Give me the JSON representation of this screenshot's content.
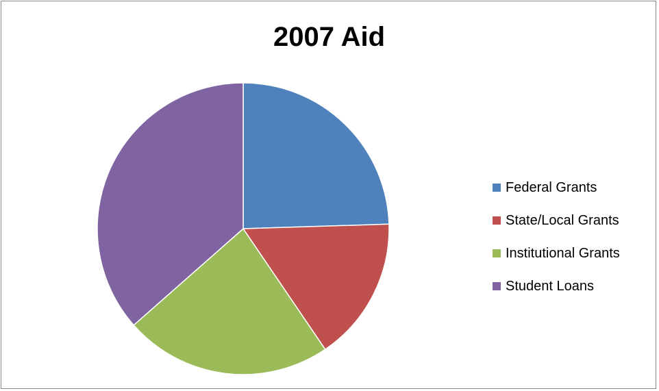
{
  "chart_data": {
    "type": "pie",
    "title": "2007 Aid",
    "categories": [
      "Federal Grants",
      "State/Local Grants",
      "Institutional Grants",
      "Student Loans"
    ],
    "values": [
      24.5,
      16.0,
      23.0,
      36.5
    ],
    "colors": [
      "#4F81BD",
      "#C0504D",
      "#9BBB59",
      "#8064A2"
    ],
    "legend": "right",
    "start_angle": "12 o'clock",
    "direction": "clockwise"
  }
}
